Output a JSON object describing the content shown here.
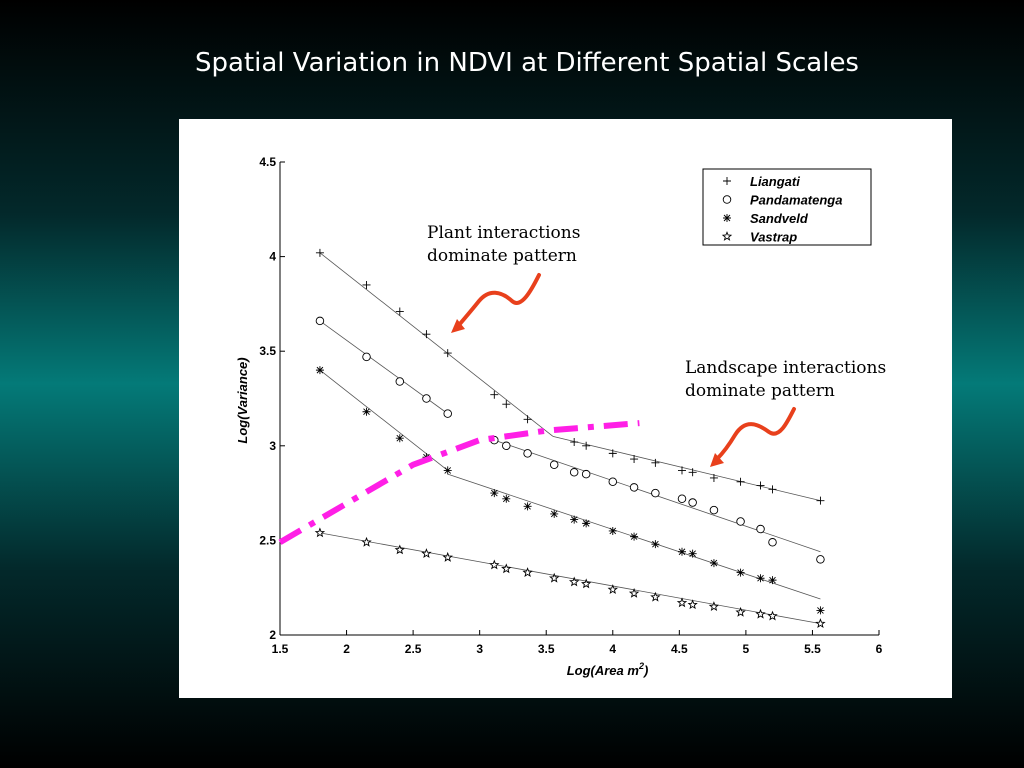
{
  "slide": {
    "title": "Spatial Variation in NDVI at Different Spatial Scales"
  },
  "annotations": [
    {
      "lines": [
        "Plant interactions",
        "dominate pattern"
      ]
    },
    {
      "lines": [
        "Landscape interactions",
        "dominate pattern"
      ]
    }
  ],
  "colors": {
    "arrow": "#e8401c",
    "boundary": "#ff1fe6",
    "panel": "#ffffff"
  },
  "chart_data": {
    "type": "scatter",
    "title": "",
    "xlabel": "Log(Area m",
    "xlabel_sup": "2",
    "xlabel_close": ")",
    "ylabel": "Log(Variance)",
    "xlim": [
      1.5,
      6
    ],
    "ylim": [
      2,
      4.5
    ],
    "x_ticks": [
      "1.5",
      "2",
      "2.5",
      "3",
      "3.5",
      "4",
      "4.5",
      "5",
      "5.5",
      "6"
    ],
    "y_ticks": [
      "2",
      "2.5",
      "3",
      "3.5",
      "4",
      "4.5"
    ],
    "grid": false,
    "legend_position": "top-right",
    "series": [
      {
        "name": "Liangati",
        "marker": "plus",
        "points": [
          [
            1.8,
            4.02
          ],
          [
            2.15,
            3.85
          ],
          [
            2.4,
            3.71
          ],
          [
            2.6,
            3.59
          ],
          [
            2.76,
            3.49
          ],
          [
            3.11,
            3.27
          ],
          [
            3.2,
            3.22
          ],
          [
            3.36,
            3.14
          ],
          [
            3.71,
            3.02
          ],
          [
            3.8,
            3.0
          ],
          [
            4.0,
            2.96
          ],
          [
            4.16,
            2.93
          ],
          [
            4.32,
            2.91
          ],
          [
            4.52,
            2.87
          ],
          [
            4.6,
            2.86
          ],
          [
            4.76,
            2.83
          ],
          [
            4.96,
            2.81
          ],
          [
            5.11,
            2.79
          ],
          [
            5.2,
            2.77
          ],
          [
            5.56,
            2.71
          ]
        ],
        "fit": [
          [
            [
              1.8,
              4.02
            ],
            [
              3.55,
              3.05
            ]
          ],
          [
            [
              3.55,
              3.05
            ],
            [
              5.56,
              2.71
            ]
          ]
        ]
      },
      {
        "name": "Pandamatenga",
        "marker": "circle",
        "points": [
          [
            1.8,
            3.66
          ],
          [
            2.15,
            3.47
          ],
          [
            2.4,
            3.34
          ],
          [
            2.6,
            3.25
          ],
          [
            2.76,
            3.17
          ],
          [
            3.11,
            3.03
          ],
          [
            3.2,
            3.0
          ],
          [
            3.36,
            2.96
          ],
          [
            3.56,
            2.9
          ],
          [
            3.71,
            2.86
          ],
          [
            3.8,
            2.85
          ],
          [
            4.0,
            2.81
          ],
          [
            4.16,
            2.78
          ],
          [
            4.32,
            2.75
          ],
          [
            4.52,
            2.72
          ],
          [
            4.6,
            2.7
          ],
          [
            4.76,
            2.66
          ],
          [
            4.96,
            2.6
          ],
          [
            5.11,
            2.56
          ],
          [
            5.2,
            2.49
          ],
          [
            5.56,
            2.4
          ]
        ],
        "fit": [
          [
            [
              1.8,
              3.66
            ],
            [
              2.76,
              3.17
            ]
          ],
          [
            [
              3.11,
              3.03
            ],
            [
              5.56,
              2.44
            ]
          ]
        ]
      },
      {
        "name": "Sandveld",
        "marker": "star",
        "points": [
          [
            1.8,
            3.4
          ],
          [
            2.15,
            3.18
          ],
          [
            2.4,
            3.04
          ],
          [
            2.6,
            2.94
          ],
          [
            2.76,
            2.87
          ],
          [
            3.11,
            2.75
          ],
          [
            3.2,
            2.72
          ],
          [
            3.36,
            2.68
          ],
          [
            3.56,
            2.64
          ],
          [
            3.71,
            2.61
          ],
          [
            3.8,
            2.59
          ],
          [
            4.0,
            2.55
          ],
          [
            4.16,
            2.52
          ],
          [
            4.32,
            2.48
          ],
          [
            4.52,
            2.44
          ],
          [
            4.6,
            2.43
          ],
          [
            4.76,
            2.38
          ],
          [
            4.96,
            2.33
          ],
          [
            5.11,
            2.3
          ],
          [
            5.2,
            2.29
          ],
          [
            5.56,
            2.13
          ]
        ],
        "fit": [
          [
            [
              1.8,
              3.4
            ],
            [
              2.76,
              2.87
            ]
          ],
          [
            [
              2.76,
              2.85
            ],
            [
              5.56,
              2.19
            ]
          ]
        ]
      },
      {
        "name": "Vastrap",
        "marker": "pentagram",
        "points": [
          [
            1.8,
            2.54
          ],
          [
            2.15,
            2.49
          ],
          [
            2.4,
            2.45
          ],
          [
            2.6,
            2.43
          ],
          [
            2.76,
            2.41
          ],
          [
            3.11,
            2.37
          ],
          [
            3.2,
            2.35
          ],
          [
            3.36,
            2.33
          ],
          [
            3.56,
            2.3
          ],
          [
            3.71,
            2.28
          ],
          [
            3.8,
            2.27
          ],
          [
            4.0,
            2.24
          ],
          [
            4.16,
            2.22
          ],
          [
            4.32,
            2.2
          ],
          [
            4.52,
            2.17
          ],
          [
            4.6,
            2.16
          ],
          [
            4.76,
            2.15
          ],
          [
            4.96,
            2.12
          ],
          [
            5.11,
            2.11
          ],
          [
            5.2,
            2.1
          ],
          [
            5.56,
            2.06
          ]
        ],
        "fit": [
          [
            [
              1.8,
              2.54
            ],
            [
              5.56,
              2.06
            ]
          ]
        ]
      }
    ],
    "scale_boundary": [
      [
        1.5,
        2.49
      ],
      [
        2.5,
        2.9
      ],
      [
        3.0,
        3.03
      ],
      [
        3.5,
        3.08
      ],
      [
        4.2,
        3.12
      ]
    ]
  }
}
